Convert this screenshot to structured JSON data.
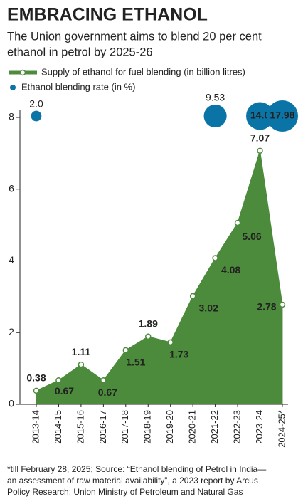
{
  "chart_data": {
    "type": "area",
    "title": "EMBRACING ETHANOL",
    "subtitle": [
      "The Union government aims to blend 20 per cent",
      "ethanol in petrol by 2025-26"
    ],
    "categories": [
      "2013-14",
      "2014-15",
      "2015-16",
      "2016-17",
      "2017-18",
      "2018-19",
      "2019-20",
      "2020-21",
      "2021-22",
      "2022-23",
      "2023-24",
      "2024-25*"
    ],
    "series": [
      {
        "name": "Supply of ethanol for fuel blending (in billion litres)",
        "color": "#4b8b3b",
        "values": [
          0.38,
          0.67,
          1.11,
          0.67,
          1.51,
          1.89,
          1.73,
          3.02,
          4.08,
          5.06,
          7.07,
          2.78
        ]
      },
      {
        "name": "Ethanol blending rate (in %)",
        "color": "#0b74a6",
        "type": "bubble",
        "values": [
          2.0,
          null,
          null,
          null,
          null,
          null,
          null,
          null,
          9.53,
          null,
          14.0,
          17.98
        ],
        "value_labels": [
          "2.0",
          null,
          null,
          null,
          null,
          null,
          null,
          null,
          "9.53",
          null,
          "14.0",
          "17.98"
        ]
      }
    ],
    "ylim": [
      0,
      8
    ],
    "yticks": [
      0,
      2,
      4,
      6,
      8
    ],
    "footnote": [
      "*till February 28, 2025; Source: “Ethanol blending of Petrol in India—",
      "an assessment of raw material availability”, a 2023 report by Arcus",
      "Policy Research; Union Ministry of Petroleum and Natural Gas"
    ]
  }
}
